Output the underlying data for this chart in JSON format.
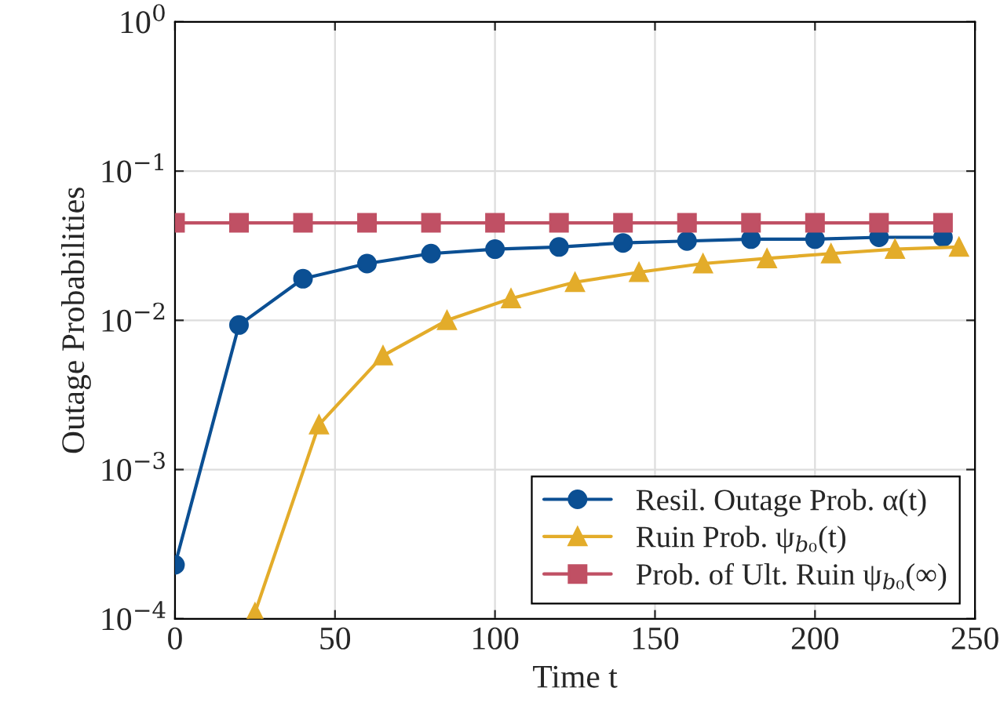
{
  "chart_data": {
    "type": "line",
    "xlabel": "Time t",
    "ylabel": "Outage Probabilities",
    "log": "y",
    "grid": true,
    "legend": "bottom right",
    "line_style": "solid",
    "xlim": [
      0,
      250
    ],
    "xticks": [
      0,
      50,
      100,
      150,
      200,
      250
    ],
    "ylim": [
      0.0001,
      1
    ],
    "yticks": [
      {
        "value": 0.0001,
        "label": "10$^{−4}$"
      },
      {
        "value": 0.001,
        "label": "10$^{−3}$"
      },
      {
        "value": 0.01,
        "label": "10$^{−2}$"
      },
      {
        "value": 0.1,
        "label": "10$^{−1}$"
      },
      {
        "value": 1,
        "label": "10$^{0}$"
      }
    ],
    "series": [
      {
        "name": "Resil. Outage Prob. α(t)",
        "color": "#0b4f93",
        "marker": "circle",
        "x": [
          0,
          20,
          40,
          60,
          80,
          100,
          120,
          140,
          160,
          180,
          200,
          220,
          240
        ],
        "values": [
          0.00023,
          0.0093,
          0.019,
          0.024,
          0.028,
          0.03,
          0.031,
          0.033,
          0.034,
          0.035,
          0.035,
          0.036,
          0.036
        ]
      },
      {
        "name": "Ruin Prob. ψ$_{b₀}$(t)",
        "color": "#e3ac2a",
        "marker": "triangle",
        "x": [
          25,
          45,
          65,
          85,
          105,
          125,
          145,
          165,
          185,
          205,
          225,
          245
        ],
        "values": [
          0.00011,
          0.002,
          0.0058,
          0.01,
          0.014,
          0.018,
          0.021,
          0.024,
          0.026,
          0.028,
          0.03,
          0.031
        ]
      },
      {
        "name": "Prob. of Ult. Ruin ψ$_{b₀}$(∞)",
        "color": "#c05064",
        "marker": "square",
        "x": [
          0,
          20,
          40,
          60,
          80,
          100,
          120,
          140,
          160,
          180,
          200,
          220,
          240
        ],
        "values": [
          0.045,
          0.045,
          0.045,
          0.045,
          0.045,
          0.045,
          0.045,
          0.045,
          0.045,
          0.045,
          0.045,
          0.045,
          0.045
        ]
      }
    ]
  }
}
